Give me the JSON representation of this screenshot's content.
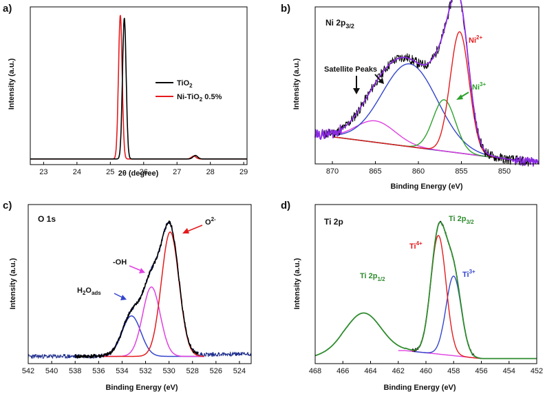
{
  "figure": {
    "panel_labels": [
      "a)",
      "b)",
      "c)",
      "d)"
    ]
  },
  "chart_data": [
    {
      "id": "a",
      "type": "line",
      "panel_label": "a)",
      "xlabel": "2θ (degree)",
      "ylabel": "Intensity (a.u.)",
      "xlim": [
        22.6,
        29.1
      ],
      "ylim": [
        0,
        1.12
      ],
      "xticks": [
        23,
        24,
        25,
        26,
        27,
        28,
        29
      ],
      "grid": false,
      "legend_position": "right",
      "series": [
        {
          "name": "TiO2",
          "legend_main": "TiO",
          "legend_sub": "2",
          "legend_after": "",
          "color": "#000000",
          "peaks": [
            {
              "center": 25.42,
              "height": 1.0,
              "width": 0.055
            },
            {
              "center": 27.55,
              "height": 0.025,
              "width": 0.07
            }
          ]
        },
        {
          "name": "Ni-TiO2 0.5%",
          "legend_main": "Ni-TiO",
          "legend_sub": "2",
          "legend_after": " 0.5%",
          "color": "#e41a1c",
          "peaks": [
            {
              "center": 25.3,
              "height": 1.02,
              "width": 0.055
            },
            {
              "center": 27.5,
              "height": 0.02,
              "width": 0.07
            }
          ]
        }
      ]
    },
    {
      "id": "b",
      "type": "line",
      "panel_label": "b)",
      "title": {
        "main": "Ni 2p",
        "sub": "3/2"
      },
      "xlabel": "Binding Energy (eV)",
      "ylabel": "Intensity (a.u.)",
      "xlim": [
        872,
        846
      ],
      "ylim": [
        0,
        1.1
      ],
      "xticks": [
        870,
        865,
        860,
        855,
        850
      ],
      "background_line": {
        "start": [
          870,
          0.19
        ],
        "end": [
          848,
          0.02
        ]
      },
      "components": [
        {
          "name": "Ni2+",
          "color": "#e41a1c",
          "center": 855.2,
          "height": 0.85,
          "width": 1.1
        },
        {
          "name": "Ni3+",
          "color": "#2ca02c",
          "center": 857.0,
          "height": 0.36,
          "width": 1.3
        },
        {
          "name": "Satellite Peaks",
          "color": "#3344cc",
          "center": 861.0,
          "height": 0.58,
          "width": 3.2
        },
        {
          "name": "Satellite Peaks (minor)",
          "color": "#e040e0",
          "center": 865.0,
          "height": 0.15,
          "width": 2.3
        }
      ],
      "envelope_color": "#8a2be2",
      "raw_color": "#000000",
      "annotations": [
        {
          "text": "Satellite Peaks",
          "color": "#111111"
        },
        {
          "main": "Ni",
          "sup": "2+",
          "color": "#e41a1c"
        },
        {
          "main": "Ni",
          "sup": "3+",
          "color": "#2ca02c"
        }
      ]
    },
    {
      "id": "c",
      "type": "line",
      "panel_label": "c)",
      "title": "O 1s",
      "xlabel": "Binding Energy (eV)",
      "ylabel": "Intensity (a.u.)",
      "xlim": [
        542,
        523
      ],
      "ylim": [
        0,
        1.1
      ],
      "xticks": [
        542,
        540,
        538,
        536,
        534,
        532,
        530,
        528,
        526,
        524
      ],
      "baseline": 0.05,
      "components": [
        {
          "name": "O2-",
          "color": "#e41a1c",
          "center": 529.9,
          "height": 0.86,
          "width": 0.75
        },
        {
          "name": "-OH",
          "color": "#e040e0",
          "center": 531.5,
          "height": 0.48,
          "width": 0.75
        },
        {
          "name": "H2Oads",
          "color": "#3344cc",
          "center": 533.2,
          "height": 0.28,
          "width": 0.8
        }
      ],
      "raw_color": "#000000",
      "tail_color": "#1a2a8a",
      "annotations": [
        {
          "main": "O",
          "sup": "2-",
          "color": "#111111"
        },
        {
          "text": "-OH",
          "color": "#111111"
        },
        {
          "main": "H",
          "sub1": "2",
          "mid": "O",
          "sub2": "ads",
          "color": "#111111"
        }
      ]
    },
    {
      "id": "d",
      "type": "line",
      "panel_label": "d)",
      "title": "Ti 2p",
      "xlabel": "Binding Energy (eV)",
      "ylabel": "Intensity (a.u.)",
      "xlim": [
        468,
        452
      ],
      "ylim": [
        0,
        1.1
      ],
      "xticks": [
        468,
        466,
        464,
        462,
        460,
        458,
        456,
        454,
        452
      ],
      "components": [
        {
          "name": "Ti4+",
          "color": "#e41a1c",
          "center": 459.1,
          "height": 0.82,
          "width": 0.55
        },
        {
          "name": "Ti3+",
          "color": "#3344cc",
          "center": 458.0,
          "height": 0.55,
          "width": 0.55
        }
      ],
      "envelope_color": "#2e8b2e",
      "background_color": "#e040e0",
      "annotations": [
        {
          "main": "Ti 2p",
          "sub": "3/2",
          "color": "#2e8b2e"
        },
        {
          "main": "Ti 2p",
          "sub": "1/2",
          "color": "#2e8b2e"
        },
        {
          "main": "Ti",
          "sup": "4+",
          "color": "#e41a1c"
        },
        {
          "main": "Ti",
          "sup": "3+",
          "color": "#3344cc"
        }
      ]
    }
  ]
}
